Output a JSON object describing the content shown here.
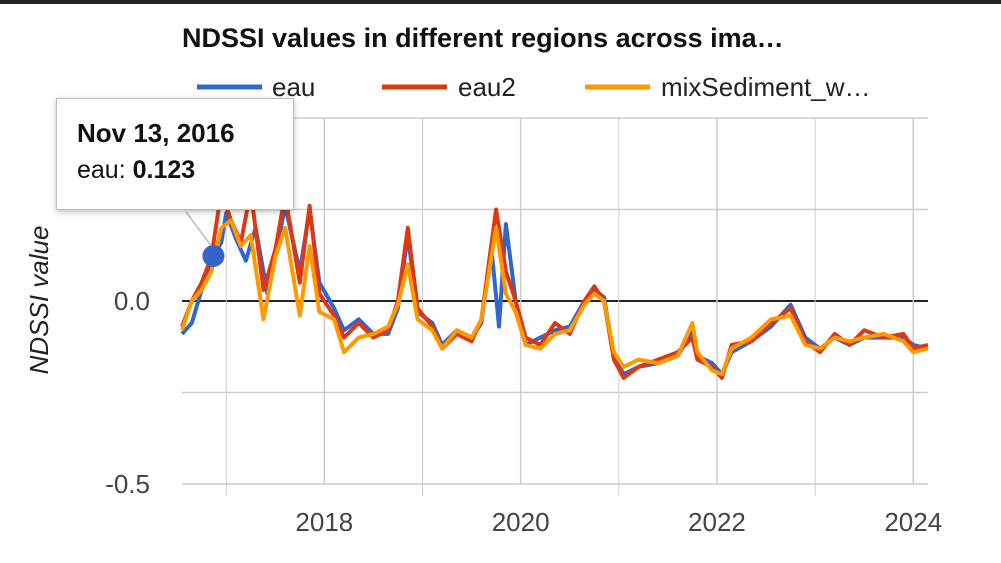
{
  "chart_data": {
    "type": "line",
    "title": "NDSSI values in different regions across ima…",
    "xlabel": "",
    "ylabel": "NDSSI value",
    "x_ticks": [
      "2018",
      "2020",
      "2022",
      "2024"
    ],
    "y_ticks": [
      "0.0",
      "-0.5"
    ],
    "xlim": [
      2016.55,
      2024.15
    ],
    "ylim": [
      -0.5,
      0.5
    ],
    "grid": true,
    "legend": "top",
    "series": [
      {
        "name": "eau",
        "color": "#3366cc",
        "points": [
          [
            2016.55,
            -0.09
          ],
          [
            2016.65,
            -0.06
          ],
          [
            2016.75,
            0.03
          ],
          [
            2016.87,
            0.123
          ],
          [
            2016.95,
            0.16
          ],
          [
            2017.0,
            0.24
          ],
          [
            2017.1,
            0.17
          ],
          [
            2017.2,
            0.11
          ],
          [
            2017.3,
            0.2
          ],
          [
            2017.42,
            0.02
          ],
          [
            2017.5,
            0.12
          ],
          [
            2017.6,
            0.26
          ],
          [
            2017.75,
            0.08
          ],
          [
            2017.85,
            0.25
          ],
          [
            2017.95,
            0.05
          ],
          [
            2018.1,
            -0.02
          ],
          [
            2018.2,
            -0.08
          ],
          [
            2018.35,
            -0.05
          ],
          [
            2018.5,
            -0.09
          ],
          [
            2018.65,
            -0.09
          ],
          [
            2018.75,
            -0.02
          ],
          [
            2018.85,
            0.18
          ],
          [
            2018.95,
            -0.03
          ],
          [
            2019.1,
            -0.06
          ],
          [
            2019.2,
            -0.12
          ],
          [
            2019.35,
            -0.08
          ],
          [
            2019.5,
            -0.1
          ],
          [
            2019.6,
            -0.06
          ],
          [
            2019.7,
            0.15
          ],
          [
            2019.78,
            -0.07
          ],
          [
            2019.85,
            0.21
          ],
          [
            2019.95,
            0.0
          ],
          [
            2020.05,
            -0.12
          ],
          [
            2020.2,
            -0.1
          ],
          [
            2020.35,
            -0.08
          ],
          [
            2020.5,
            -0.07
          ],
          [
            2020.65,
            0.0
          ],
          [
            2020.75,
            0.03
          ],
          [
            2020.85,
            0.01
          ],
          [
            2020.95,
            -0.15
          ],
          [
            2021.05,
            -0.2
          ],
          [
            2021.2,
            -0.18
          ],
          [
            2021.4,
            -0.17
          ],
          [
            2021.6,
            -0.15
          ],
          [
            2021.75,
            -0.08
          ],
          [
            2021.8,
            -0.15
          ],
          [
            2021.95,
            -0.17
          ],
          [
            2022.05,
            -0.2
          ],
          [
            2022.15,
            -0.14
          ],
          [
            2022.35,
            -0.11
          ],
          [
            2022.55,
            -0.07
          ],
          [
            2022.75,
            -0.01
          ],
          [
            2022.9,
            -0.1
          ],
          [
            2023.05,
            -0.13
          ],
          [
            2023.2,
            -0.1
          ],
          [
            2023.35,
            -0.12
          ],
          [
            2023.5,
            -0.1
          ],
          [
            2023.7,
            -0.1
          ],
          [
            2023.9,
            -0.1
          ],
          [
            2024.0,
            -0.12
          ],
          [
            2024.15,
            -0.13
          ]
        ]
      },
      {
        "name": "eau2",
        "color": "#dc3912",
        "points": [
          [
            2016.55,
            -0.07
          ],
          [
            2016.65,
            0.0
          ],
          [
            2016.75,
            0.05
          ],
          [
            2016.85,
            0.12
          ],
          [
            2016.95,
            0.3
          ],
          [
            2017.05,
            0.22
          ],
          [
            2017.15,
            0.16
          ],
          [
            2017.25,
            0.3
          ],
          [
            2017.38,
            0.03
          ],
          [
            2017.5,
            0.14
          ],
          [
            2017.6,
            0.29
          ],
          [
            2017.75,
            0.05
          ],
          [
            2017.85,
            0.26
          ],
          [
            2017.95,
            0.02
          ],
          [
            2018.1,
            -0.04
          ],
          [
            2018.2,
            -0.1
          ],
          [
            2018.35,
            -0.06
          ],
          [
            2018.5,
            -0.1
          ],
          [
            2018.65,
            -0.08
          ],
          [
            2018.75,
            0.0
          ],
          [
            2018.85,
            0.2
          ],
          [
            2018.95,
            -0.02
          ],
          [
            2019.1,
            -0.07
          ],
          [
            2019.2,
            -0.13
          ],
          [
            2019.35,
            -0.09
          ],
          [
            2019.5,
            -0.11
          ],
          [
            2019.6,
            -0.05
          ],
          [
            2019.75,
            0.25
          ],
          [
            2019.85,
            0.08
          ],
          [
            2019.95,
            0.0
          ],
          [
            2020.05,
            -0.1
          ],
          [
            2020.2,
            -0.12
          ],
          [
            2020.35,
            -0.06
          ],
          [
            2020.5,
            -0.09
          ],
          [
            2020.65,
            0.0
          ],
          [
            2020.75,
            0.04
          ],
          [
            2020.85,
            0.0
          ],
          [
            2020.95,
            -0.16
          ],
          [
            2021.05,
            -0.21
          ],
          [
            2021.2,
            -0.18
          ],
          [
            2021.4,
            -0.16
          ],
          [
            2021.6,
            -0.14
          ],
          [
            2021.75,
            -0.1
          ],
          [
            2021.8,
            -0.16
          ],
          [
            2021.95,
            -0.18
          ],
          [
            2022.05,
            -0.21
          ],
          [
            2022.15,
            -0.12
          ],
          [
            2022.35,
            -0.11
          ],
          [
            2022.55,
            -0.06
          ],
          [
            2022.75,
            -0.02
          ],
          [
            2022.9,
            -0.11
          ],
          [
            2023.05,
            -0.14
          ],
          [
            2023.2,
            -0.09
          ],
          [
            2023.35,
            -0.12
          ],
          [
            2023.5,
            -0.08
          ],
          [
            2023.7,
            -0.1
          ],
          [
            2023.9,
            -0.09
          ],
          [
            2024.0,
            -0.13
          ],
          [
            2024.15,
            -0.12
          ]
        ]
      },
      {
        "name": "mixSediment_w…",
        "color": "#ff9900",
        "points": [
          [
            2016.55,
            -0.08
          ],
          [
            2016.65,
            0.0
          ],
          [
            2016.75,
            0.03
          ],
          [
            2016.85,
            0.08
          ],
          [
            2016.95,
            0.2
          ],
          [
            2017.05,
            0.22
          ],
          [
            2017.15,
            0.15
          ],
          [
            2017.25,
            0.18
          ],
          [
            2017.38,
            -0.05
          ],
          [
            2017.5,
            0.12
          ],
          [
            2017.6,
            0.2
          ],
          [
            2017.75,
            -0.04
          ],
          [
            2017.85,
            0.15
          ],
          [
            2017.95,
            -0.03
          ],
          [
            2018.1,
            -0.05
          ],
          [
            2018.2,
            -0.14
          ],
          [
            2018.35,
            -0.1
          ],
          [
            2018.5,
            -0.09
          ],
          [
            2018.65,
            -0.07
          ],
          [
            2018.75,
            -0.01
          ],
          [
            2018.85,
            0.1
          ],
          [
            2018.95,
            -0.05
          ],
          [
            2019.1,
            -0.08
          ],
          [
            2019.2,
            -0.13
          ],
          [
            2019.35,
            -0.08
          ],
          [
            2019.5,
            -0.1
          ],
          [
            2019.6,
            -0.05
          ],
          [
            2019.75,
            0.2
          ],
          [
            2019.85,
            0.02
          ],
          [
            2019.95,
            -0.03
          ],
          [
            2020.05,
            -0.12
          ],
          [
            2020.2,
            -0.13
          ],
          [
            2020.35,
            -0.09
          ],
          [
            2020.5,
            -0.08
          ],
          [
            2020.65,
            -0.01
          ],
          [
            2020.75,
            0.02
          ],
          [
            2020.85,
            0.0
          ],
          [
            2020.95,
            -0.14
          ],
          [
            2021.05,
            -0.18
          ],
          [
            2021.2,
            -0.16
          ],
          [
            2021.4,
            -0.17
          ],
          [
            2021.6,
            -0.15
          ],
          [
            2021.75,
            -0.06
          ],
          [
            2021.8,
            -0.14
          ],
          [
            2021.95,
            -0.19
          ],
          [
            2022.05,
            -0.2
          ],
          [
            2022.15,
            -0.13
          ],
          [
            2022.35,
            -0.1
          ],
          [
            2022.55,
            -0.05
          ],
          [
            2022.75,
            -0.04
          ],
          [
            2022.9,
            -0.12
          ],
          [
            2023.05,
            -0.13
          ],
          [
            2023.2,
            -0.1
          ],
          [
            2023.35,
            -0.11
          ],
          [
            2023.5,
            -0.1
          ],
          [
            2023.7,
            -0.09
          ],
          [
            2023.9,
            -0.11
          ],
          [
            2024.0,
            -0.14
          ],
          [
            2024.15,
            -0.13
          ]
        ]
      }
    ]
  },
  "tooltip": {
    "date": "Nov 13, 2016",
    "series": "eau",
    "value": "0.123",
    "x": 2016.87,
    "y": 0.123
  }
}
